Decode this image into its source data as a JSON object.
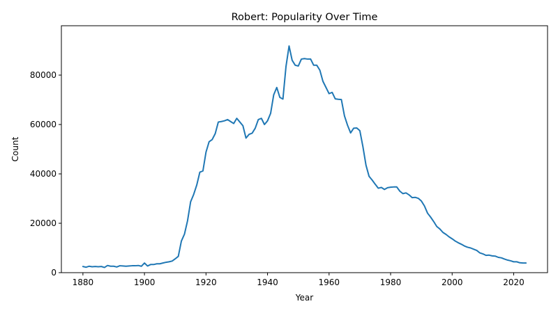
{
  "chart_data": {
    "type": "line",
    "title": "Robert: Popularity Over Time",
    "xlabel": "Year",
    "ylabel": "Count",
    "xlim": [
      1873,
      2031
    ],
    "ylim": [
      0,
      100000
    ],
    "xticks": [
      1880,
      1900,
      1920,
      1940,
      1960,
      1980,
      2000,
      2020
    ],
    "yticks": [
      0,
      20000,
      40000,
      60000,
      80000
    ],
    "grid": false,
    "legend": "none",
    "line_color": "#1f77b4",
    "series": [
      {
        "x": [
          1880,
          1881,
          1882,
          1883,
          1884,
          1885,
          1886,
          1887,
          1888,
          1889,
          1890,
          1891,
          1892,
          1893,
          1894,
          1895,
          1896,
          1897,
          1898,
          1899,
          1900,
          1901,
          1902,
          1903,
          1904,
          1905,
          1906,
          1907,
          1908,
          1909,
          1910,
          1911,
          1912,
          1913,
          1914,
          1915,
          1916,
          1917,
          1918,
          1919,
          1920,
          1921,
          1922,
          1923,
          1924,
          1925,
          1926,
          1927,
          1928,
          1929,
          1930,
          1931,
          1932,
          1933,
          1934,
          1935,
          1936,
          1937,
          1938,
          1939,
          1940,
          1941,
          1942,
          1943,
          1944,
          1945,
          1946,
          1947,
          1948,
          1949,
          1950,
          1951,
          1952,
          1953,
          1954,
          1955,
          1956,
          1957,
          1958,
          1959,
          1960,
          1961,
          1962,
          1963,
          1964,
          1965,
          1966,
          1967,
          1968,
          1969,
          1970,
          1971,
          1972,
          1973,
          1974,
          1975,
          1976,
          1977,
          1978,
          1979,
          1980,
          1981,
          1982,
          1983,
          1984,
          1985,
          1986,
          1987,
          1988,
          1989,
          1990,
          1991,
          1992,
          1993,
          1994,
          1995,
          1996,
          1997,
          1998,
          1999,
          2000,
          2001,
          2002,
          2003,
          2004,
          2005,
          2006,
          2007,
          2008,
          2009,
          2010,
          2011,
          2012,
          2013,
          2014,
          2015,
          2016,
          2017,
          2018,
          2019,
          2020,
          2021,
          2022,
          2023,
          2024
        ],
        "values": [
          2500,
          2200,
          2600,
          2400,
          2500,
          2400,
          2500,
          2100,
          2900,
          2600,
          2600,
          2300,
          2800,
          2700,
          2600,
          2700,
          2800,
          2800,
          2900,
          2600,
          3900,
          2700,
          3300,
          3300,
          3600,
          3600,
          3900,
          4200,
          4400,
          4700,
          5600,
          6600,
          12800,
          15600,
          21000,
          28700,
          31700,
          35500,
          40700,
          41200,
          48800,
          53000,
          53900,
          56300,
          61000,
          61200,
          61500,
          62000,
          61200,
          60400,
          62500,
          61000,
          59500,
          54500,
          56000,
          56500,
          58500,
          62000,
          62500,
          60000,
          61500,
          64500,
          72000,
          75000,
          71000,
          70300,
          83500,
          91800,
          86000,
          84000,
          83700,
          86500,
          86700,
          86500,
          86500,
          84000,
          84000,
          82000,
          77500,
          75000,
          72500,
          73000,
          70400,
          70200,
          70100,
          63500,
          59700,
          56600,
          58500,
          58600,
          57500,
          51000,
          43500,
          39000,
          37500,
          35800,
          34200,
          34500,
          33700,
          34400,
          34600,
          34700,
          34700,
          33000,
          32000,
          32300,
          31500,
          30400,
          30500,
          30100,
          29000,
          27000,
          24100,
          22500,
          20700,
          18700,
          17700,
          16300,
          15500,
          14500,
          13700,
          12800,
          12100,
          11500,
          10800,
          10300,
          10000,
          9500,
          9000,
          8000,
          7600,
          7000,
          7100,
          6800,
          6700,
          6200,
          6000,
          5500,
          5100,
          4800,
          4400,
          4400,
          4000,
          3900,
          3900
        ]
      }
    ]
  }
}
